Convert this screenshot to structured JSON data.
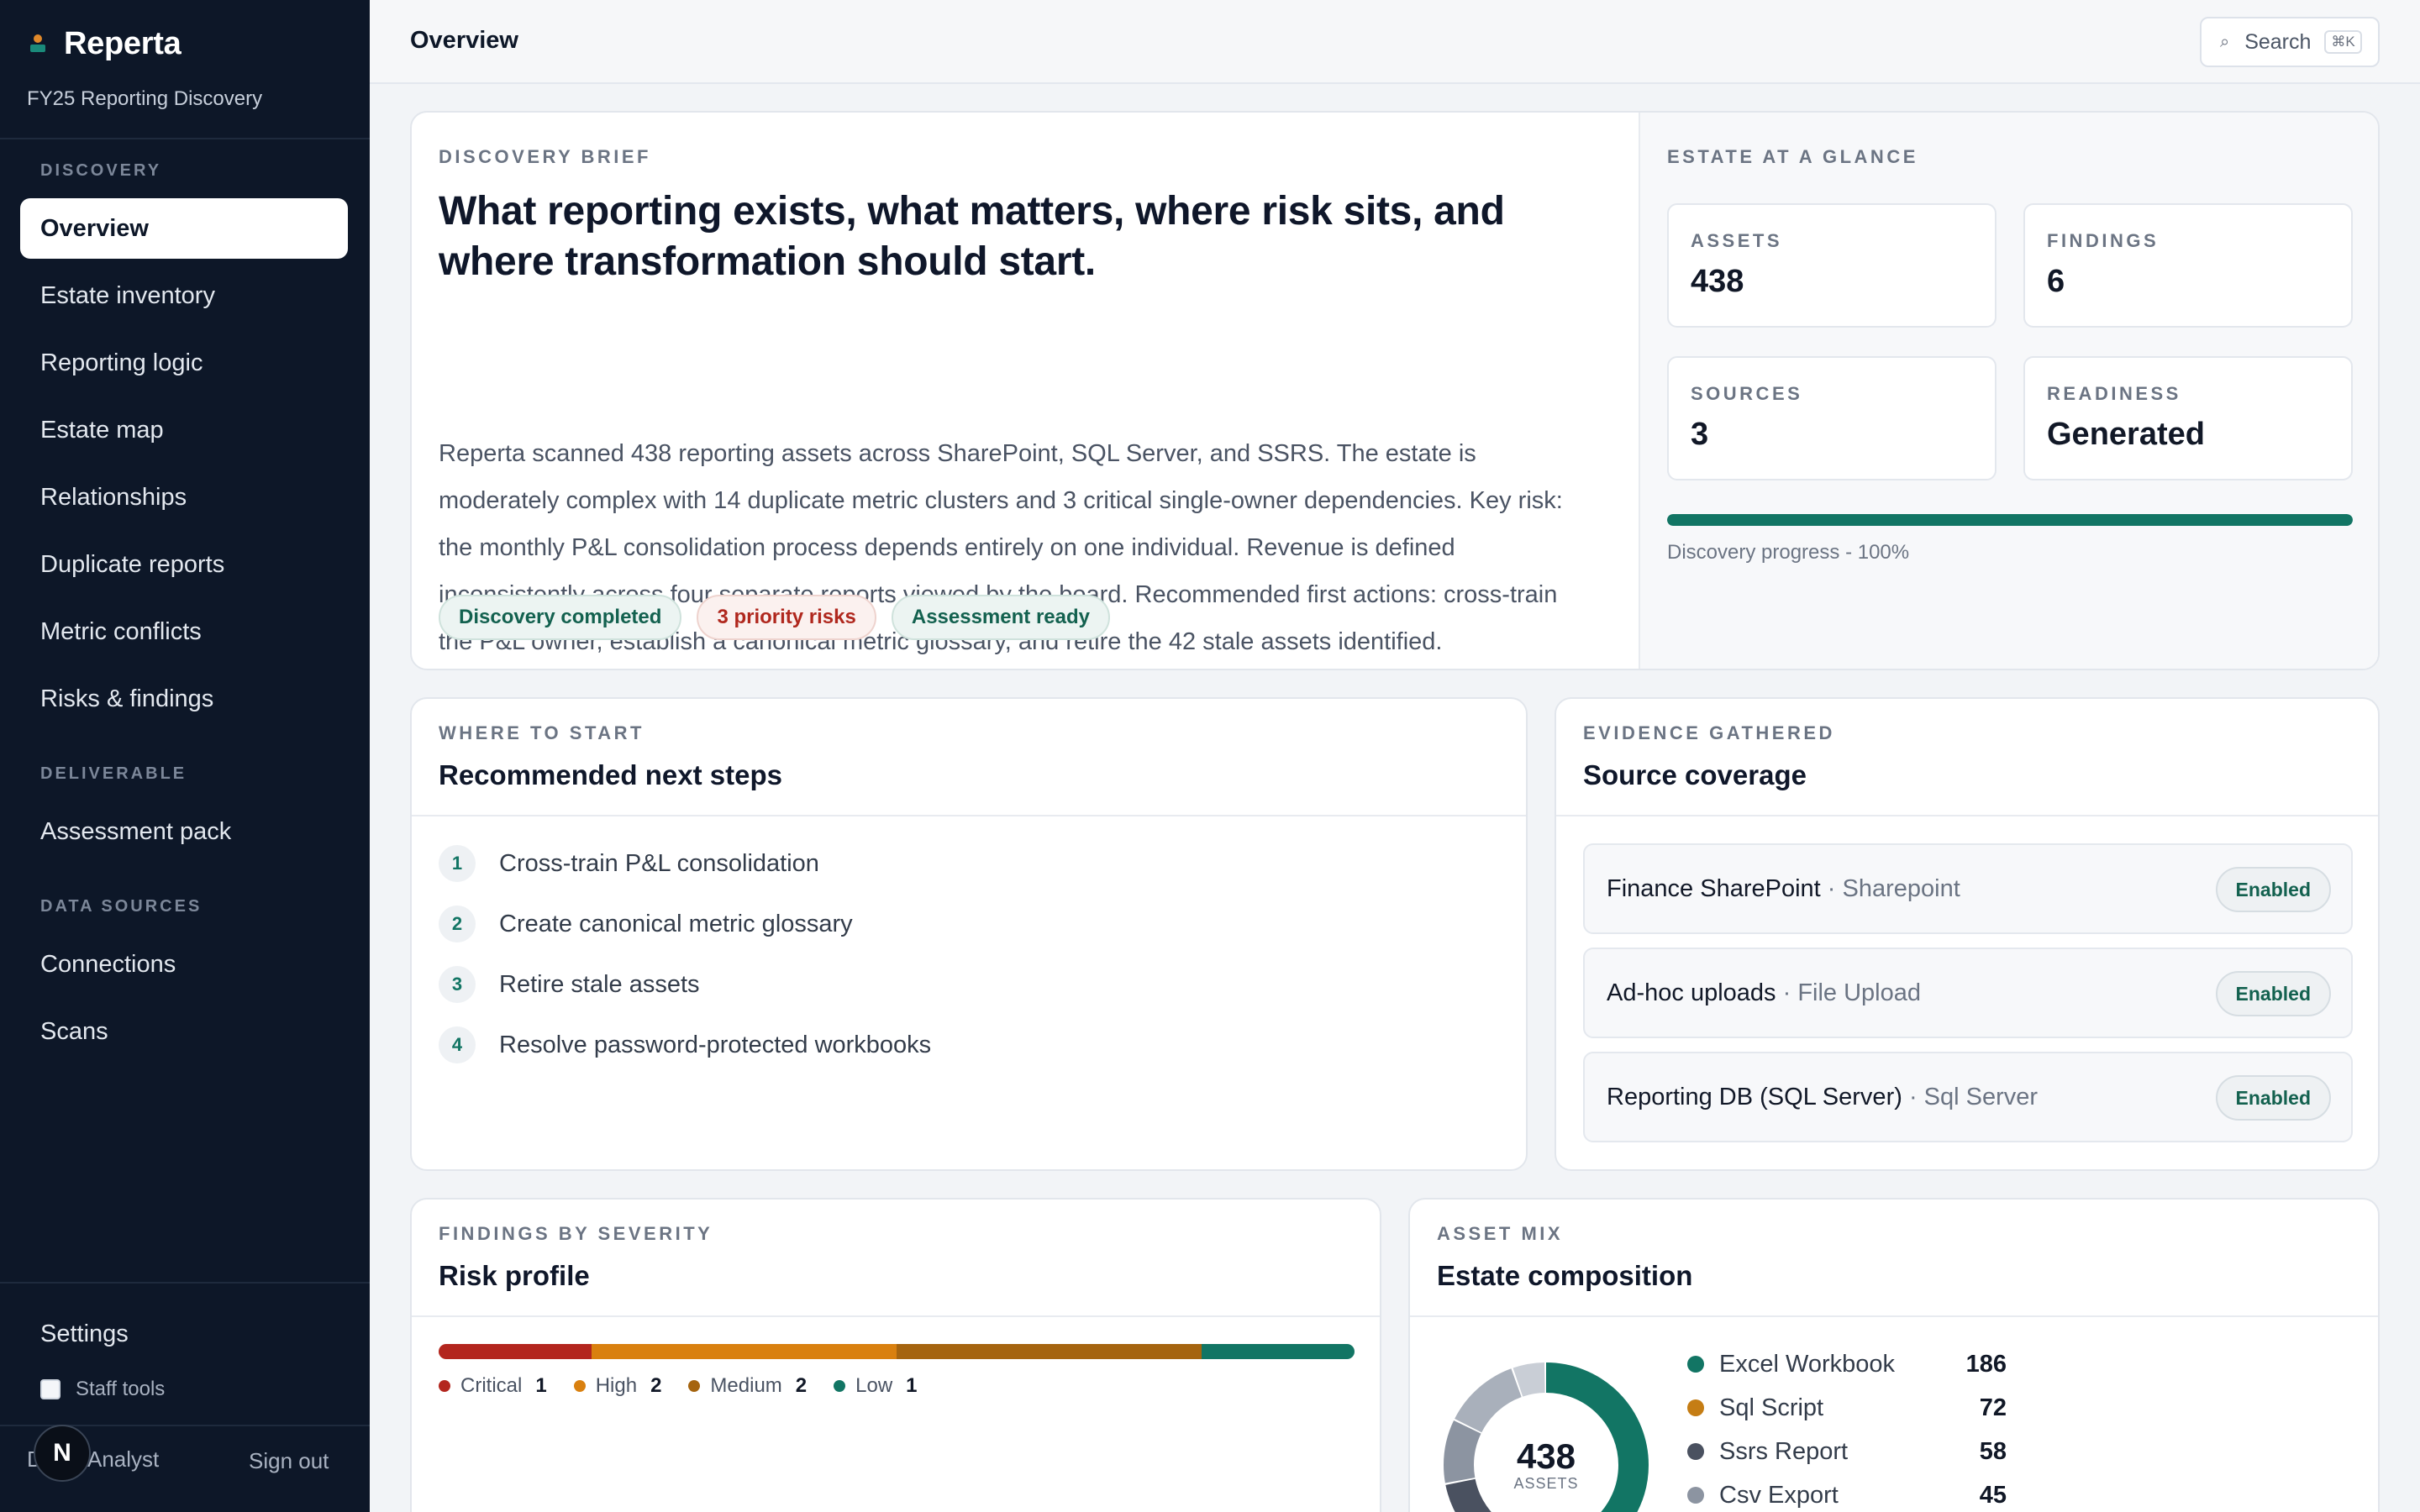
{
  "app": {
    "name": "Reperta",
    "project": "FY25 Reporting Discovery"
  },
  "sidebar": {
    "sections": [
      {
        "label": "DISCOVERY"
      },
      {
        "label": "DELIVERABLE"
      },
      {
        "label": "DATA SOURCES"
      }
    ],
    "items": [
      {
        "label": "Overview",
        "active": true
      },
      {
        "label": "Estate inventory"
      },
      {
        "label": "Reporting logic"
      },
      {
        "label": "Estate map"
      },
      {
        "label": "Relationships"
      },
      {
        "label": "Duplicate reports"
      },
      {
        "label": "Metric conflicts"
      },
      {
        "label": "Risks & findings"
      },
      {
        "label": "Assessment pack"
      },
      {
        "label": "Connections"
      },
      {
        "label": "Scans"
      }
    ],
    "settings": "Settings",
    "staff_tools": "Staff tools",
    "user": {
      "avatar_initial": "N",
      "initial": "D",
      "role": "Analyst",
      "sign_out": "Sign out"
    }
  },
  "header": {
    "title": "Overview",
    "search_label": "Search",
    "search_shortcut": "⌘K"
  },
  "brief": {
    "eyebrow": "DISCOVERY BRIEF",
    "headline": "What reporting exists, what matters, where risk sits, and where transformation should start.",
    "body_lines": [
      "Reperta scanned 438 reporting assets across SharePoint, SQL Server, and SSRS. The estate is",
      "moderately complex with 14 duplicate metric clusters and 3 critical single-owner dependencies. Key risk:",
      "the monthly P&L consolidation process depends entirely on one individual. Revenue is defined",
      "inconsistently across four separate reports viewed by the board. Recommended first actions: cross-train",
      "the P&L owner, establish a canonical metric glossary, and retire the 42 stale assets identified."
    ],
    "chips": [
      "Discovery completed",
      "3 priority risks",
      "Assessment ready"
    ]
  },
  "glance": {
    "eyebrow": "ESTATE AT A GLANCE",
    "stats": [
      {
        "label": "ASSETS",
        "value": "438"
      },
      {
        "label": "FINDINGS",
        "value": "6"
      },
      {
        "label": "SOURCES",
        "value": "3"
      },
      {
        "label": "READINESS",
        "value": "Generated"
      }
    ],
    "progress_fraction": 1.0,
    "progress_label": "Discovery progress - 100%",
    "progress_color": "#127564"
  },
  "steps": {
    "eyebrow": "WHERE TO START",
    "title": "Recommended next steps",
    "items": [
      {
        "num": "1",
        "text": "Cross-train P&L consolidation"
      },
      {
        "num": "2",
        "text": "Create canonical metric glossary"
      },
      {
        "num": "3",
        "text": "Retire stale assets"
      },
      {
        "num": "4",
        "text": "Resolve password-protected workbooks"
      }
    ]
  },
  "sources": {
    "eyebrow": "EVIDENCE GATHERED",
    "title": "Source coverage",
    "items": [
      {
        "name": "Finance SharePoint",
        "sep": " · ",
        "kind": "Sharepoint",
        "status": "Enabled"
      },
      {
        "name": "Ad-hoc uploads",
        "sep": " · ",
        "kind": "File Upload",
        "status": "Enabled"
      },
      {
        "name": "Reporting DB (SQL Server)",
        "sep": " · ",
        "kind": "Sql Server",
        "status": "Enabled"
      }
    ]
  },
  "risk": {
    "eyebrow": "FINDINGS BY SEVERITY",
    "title": "Risk profile",
    "levels": [
      {
        "label": "Critical",
        "count": "1",
        "value": 1,
        "color": "#b3261e"
      },
      {
        "label": "High",
        "count": "2",
        "value": 2,
        "color": "#d9800f"
      },
      {
        "label": "Medium",
        "count": "2",
        "value": 2,
        "color": "#a5640f"
      },
      {
        "label": "Low",
        "count": "1",
        "value": 1,
        "color": "#127564"
      }
    ]
  },
  "estate": {
    "eyebrow": "ASSET MIX",
    "title": "Estate composition",
    "total": "438",
    "total_unit": "ASSETS",
    "items": [
      {
        "label": "Excel Workbook",
        "count": "186",
        "value": 186,
        "color": "#127564"
      },
      {
        "label": "Sql Script",
        "count": "72",
        "value": 72,
        "color": "#c57d14"
      },
      {
        "label": "Ssrs Report",
        "count": "58",
        "value": 58,
        "color": "#4a5160"
      },
      {
        "label": "Csv Export",
        "count": "45",
        "value": 45,
        "color": "#8c94a1"
      }
    ],
    "remaining_value": 77,
    "remaining_colors": [
      "#a9b0bb",
      "#c9ced6"
    ]
  }
}
